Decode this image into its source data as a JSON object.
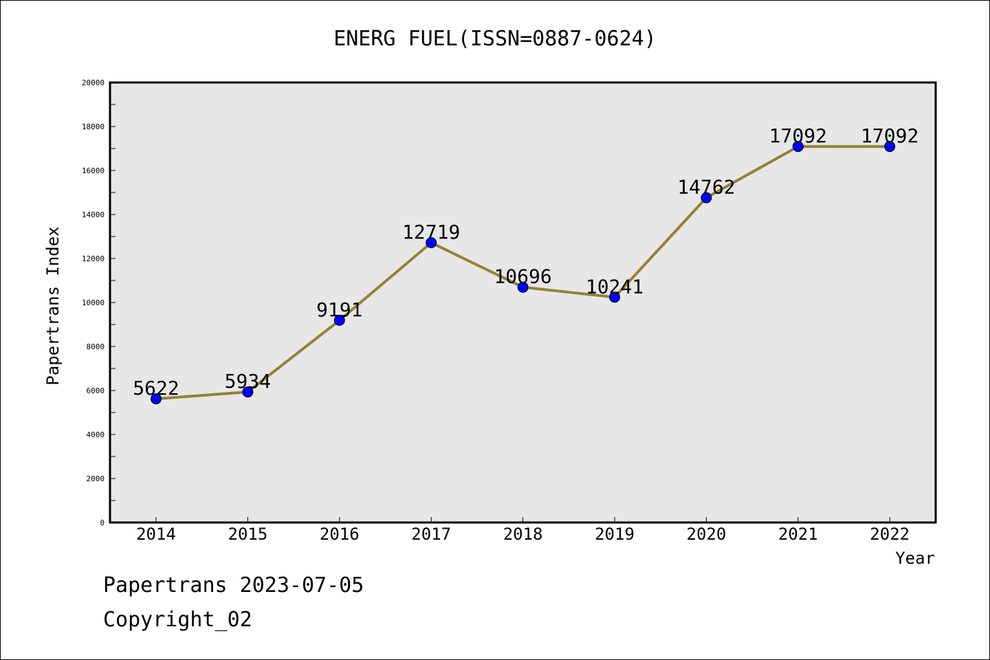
{
  "title": "ENERG FUEL(ISSN=0887-0624)",
  "footer": {
    "line1": "Papertrans 2023-07-05",
    "line2": "Copyright_02"
  },
  "colors": {
    "plot_background": "#e7e7e7",
    "line": "#948236",
    "marker": "#0000ff"
  },
  "chart_data": {
    "type": "line",
    "title": "ENERG FUEL(ISSN=0887-0624)",
    "xlabel": "Year",
    "ylabel": "Papertrans Index",
    "categories": [
      "2014",
      "2015",
      "2016",
      "2017",
      "2018",
      "2019",
      "2020",
      "2021",
      "2022"
    ],
    "values": [
      5622,
      5934,
      9191,
      12719,
      10696,
      10241,
      14762,
      17092,
      17092
    ],
    "data_labels": [
      "5622",
      "5934",
      "9191",
      "12719",
      "10696",
      "10241",
      "14762",
      "17092",
      "17092"
    ],
    "ylim": [
      0,
      20000
    ],
    "yticks": [
      0,
      2000,
      4000,
      6000,
      8000,
      10000,
      12000,
      14000,
      16000,
      18000,
      20000
    ],
    "ytick_labels": [
      "0",
      "2000",
      "4000",
      "6000",
      "8000",
      "10000",
      "12000",
      "14000",
      "16000",
      "18000",
      "20000"
    ],
    "grid": false,
    "legend": "none"
  }
}
